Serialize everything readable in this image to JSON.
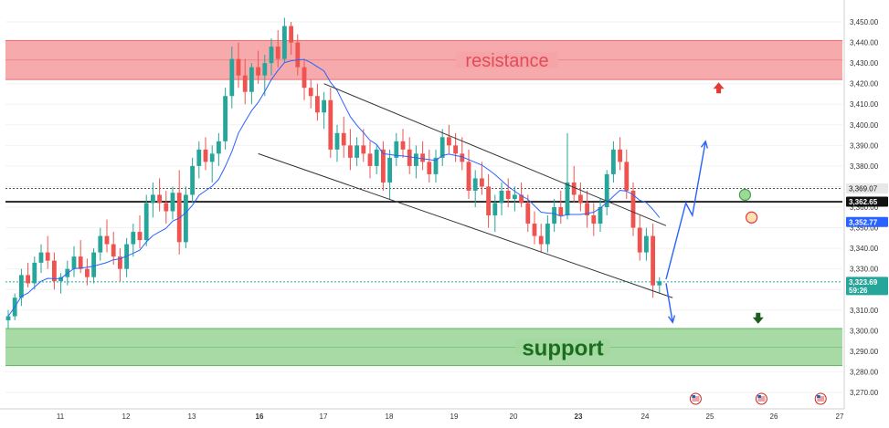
{
  "chart_data": {
    "type": "candlestick",
    "title": "",
    "xlabel": "",
    "ylabel": "",
    "ylim": [
      3262,
      3458
    ],
    "y_ticks": [
      3270,
      3280,
      3290,
      3300,
      3310,
      3320,
      3330,
      3340,
      3350,
      3360,
      3370,
      3380,
      3390,
      3400,
      3410,
      3420,
      3430,
      3440,
      3450
    ],
    "y_tick_labels": [
      "3,270.00",
      "3,280.00",
      "3,290.00",
      "3,300.00",
      "3,310.00",
      "3,320.00",
      "3,330.00",
      "3,340.00",
      "3,350.00",
      "3,360.00",
      "3,370.00",
      "3,380.00",
      "3,390.00",
      "3,400.00",
      "3,410.00",
      "3,420.00",
      "3,430.00",
      "3,440.00",
      "3,450.00"
    ],
    "x_tick_labels": [
      "11",
      "12",
      "13",
      "16",
      "17",
      "18",
      "19",
      "20",
      "23",
      "24",
      "25",
      "26",
      "27"
    ],
    "x_tick_positions": [
      1,
      2,
      3,
      4,
      5,
      6,
      7,
      8,
      9,
      10,
      11,
      12,
      13
    ],
    "x_tick_bold": [
      "16",
      "23"
    ],
    "zones": [
      {
        "name": "resistance",
        "from": 3422,
        "to": 3441,
        "color": "#f5a5a8",
        "edge": "#e06d73",
        "label_color": "#e24b57"
      },
      {
        "name": "support",
        "from": 3283,
        "to": 3301,
        "color": "#a3d8a0",
        "edge": "#5fb35c",
        "label_color": "#1b6e1f"
      }
    ],
    "levels": [
      {
        "value": 3369.07,
        "label": "3,369.07",
        "style": "dotted",
        "color": "#555555",
        "badge_bg": "#e8e8e8",
        "badge_fg": "#111"
      },
      {
        "value": 3362.65,
        "label": "3,362.65",
        "style": "solid",
        "color": "#000000",
        "badge_bg": "#111111",
        "badge_fg": "#fff"
      },
      {
        "value": 3352.77,
        "label": "3,352.77",
        "style": "none",
        "color": "#2962ff",
        "badge_bg": "#2962ff",
        "badge_fg": "#fff"
      },
      {
        "value": 3323.69,
        "label": "3,323.69",
        "sub": "59:26",
        "style": "dotted",
        "color": "#26a69a",
        "badge_bg": "#26a69a",
        "badge_fg": "#fff"
      }
    ],
    "candles_ohlc": [
      [
        3305,
        3310,
        3301,
        3307
      ],
      [
        3307,
        3318,
        3305,
        3316
      ],
      [
        3316,
        3330,
        3312,
        3327
      ],
      [
        3327,
        3333,
        3321,
        3323
      ],
      [
        3323,
        3336,
        3320,
        3333
      ],
      [
        3333,
        3342,
        3328,
        3338
      ],
      [
        3338,
        3346,
        3330,
        3334
      ],
      [
        3334,
        3338,
        3320,
        3324
      ],
      [
        3324,
        3328,
        3318,
        3326
      ],
      [
        3326,
        3334,
        3322,
        3330
      ],
      [
        3330,
        3341,
        3326,
        3336
      ],
      [
        3336,
        3344,
        3328,
        3330
      ],
      [
        3330,
        3335,
        3322,
        3326
      ],
      [
        3326,
        3340,
        3323,
        3338
      ],
      [
        3338,
        3350,
        3334,
        3346
      ],
      [
        3346,
        3354,
        3338,
        3342
      ],
      [
        3342,
        3348,
        3332,
        3336
      ],
      [
        3336,
        3340,
        3324,
        3330
      ],
      [
        3330,
        3345,
        3326,
        3342
      ],
      [
        3342,
        3352,
        3336,
        3348
      ],
      [
        3348,
        3356,
        3340,
        3344
      ],
      [
        3344,
        3366,
        3341,
        3362
      ],
      [
        3362,
        3372,
        3355,
        3366
      ],
      [
        3366,
        3374,
        3358,
        3362
      ],
      [
        3362,
        3368,
        3352,
        3358
      ],
      [
        3358,
        3370,
        3354,
        3367
      ],
      [
        3367,
        3378,
        3337,
        3343
      ],
      [
        3343,
        3370,
        3340,
        3366
      ],
      [
        3366,
        3384,
        3362,
        3380
      ],
      [
        3380,
        3392,
        3374,
        3388
      ],
      [
        3388,
        3394,
        3378,
        3382
      ],
      [
        3382,
        3390,
        3372,
        3386
      ],
      [
        3386,
        3396,
        3380,
        3392
      ],
      [
        3392,
        3418,
        3388,
        3414
      ],
      [
        3414,
        3438,
        3408,
        3432
      ],
      [
        3432,
        3440,
        3418,
        3424
      ],
      [
        3424,
        3432,
        3410,
        3416
      ],
      [
        3416,
        3430,
        3410,
        3428
      ],
      [
        3428,
        3436,
        3420,
        3424
      ],
      [
        3424,
        3434,
        3414,
        3430
      ],
      [
        3430,
        3442,
        3424,
        3438
      ],
      [
        3438,
        3446,
        3428,
        3432
      ],
      [
        3432,
        3452,
        3430,
        3448
      ],
      [
        3448,
        3450,
        3434,
        3440
      ],
      [
        3440,
        3444,
        3424,
        3428
      ],
      [
        3428,
        3432,
        3412,
        3418
      ],
      [
        3418,
        3422,
        3408,
        3414
      ],
      [
        3414,
        3420,
        3402,
        3406
      ],
      [
        3406,
        3416,
        3398,
        3412
      ],
      [
        3412,
        3418,
        3384,
        3388
      ],
      [
        3388,
        3400,
        3382,
        3396
      ],
      [
        3396,
        3404,
        3384,
        3390
      ],
      [
        3390,
        3398,
        3378,
        3384
      ],
      [
        3384,
        3394,
        3380,
        3390
      ],
      [
        3390,
        3398,
        3382,
        3386
      ],
      [
        3386,
        3392,
        3374,
        3380
      ],
      [
        3380,
        3390,
        3376,
        3388
      ],
      [
        3388,
        3392,
        3368,
        3372
      ],
      [
        3372,
        3388,
        3364,
        3384
      ],
      [
        3384,
        3396,
        3380,
        3392
      ],
      [
        3392,
        3398,
        3384,
        3388
      ],
      [
        3388,
        3394,
        3376,
        3380
      ],
      [
        3380,
        3390,
        3374,
        3386
      ],
      [
        3386,
        3392,
        3378,
        3382
      ],
      [
        3382,
        3388,
        3372,
        3376
      ],
      [
        3376,
        3388,
        3372,
        3384
      ],
      [
        3384,
        3398,
        3380,
        3394
      ],
      [
        3394,
        3400,
        3386,
        3390
      ],
      [
        3390,
        3396,
        3382,
        3386
      ],
      [
        3386,
        3394,
        3378,
        3382
      ],
      [
        3382,
        3388,
        3364,
        3368
      ],
      [
        3368,
        3378,
        3360,
        3374
      ],
      [
        3374,
        3382,
        3366,
        3370
      ],
      [
        3370,
        3376,
        3350,
        3356
      ],
      [
        3356,
        3366,
        3348,
        3362
      ],
      [
        3362,
        3372,
        3356,
        3368
      ],
      [
        3368,
        3374,
        3360,
        3364
      ],
      [
        3364,
        3370,
        3358,
        3366
      ],
      [
        3366,
        3372,
        3360,
        3362
      ],
      [
        3362,
        3366,
        3348,
        3352
      ],
      [
        3352,
        3358,
        3342,
        3346
      ],
      [
        3346,
        3352,
        3338,
        3342
      ],
      [
        3342,
        3356,
        3338,
        3352
      ],
      [
        3352,
        3364,
        3348,
        3360
      ],
      [
        3360,
        3368,
        3352,
        3356
      ],
      [
        3356,
        3396,
        3354,
        3372
      ],
      [
        3372,
        3380,
        3362,
        3366
      ],
      [
        3366,
        3372,
        3358,
        3362
      ],
      [
        3362,
        3368,
        3350,
        3356
      ],
      [
        3356,
        3362,
        3346,
        3352
      ],
      [
        3352,
        3364,
        3348,
        3360
      ],
      [
        3360,
        3378,
        3356,
        3376
      ],
      [
        3376,
        3392,
        3372,
        3388
      ],
      [
        3388,
        3394,
        3378,
        3382
      ],
      [
        3382,
        3388,
        3364,
        3368
      ],
      [
        3368,
        3372,
        3346,
        3350
      ],
      [
        3350,
        3356,
        3334,
        3338
      ],
      [
        3338,
        3350,
        3334,
        3346
      ],
      [
        3346,
        3352,
        3316,
        3322
      ],
      [
        3322,
        3326,
        3318,
        3324
      ]
    ],
    "ma_series_name": "",
    "ma_series_color": "#2962ff",
    "channel": {
      "upper": [
        [
          48,
          3420
        ],
        [
          100,
          3351
        ]
      ],
      "lower": [
        [
          38,
          3386
        ],
        [
          101,
          3316
        ]
      ]
    },
    "projection": {
      "color": "#2962ff",
      "bull_path": [
        [
          100,
          3325
        ],
        [
          103,
          3362
        ],
        [
          104,
          3356
        ],
        [
          106,
          3392
        ]
      ],
      "bear_path": [
        [
          100,
          3323
        ],
        [
          101,
          3304
        ]
      ]
    },
    "markers": [
      {
        "type": "arrow-up",
        "color": "#e53935",
        "x": 108,
        "y": 3418
      },
      {
        "type": "arrow-down",
        "color": "#1b5e20",
        "x": 114,
        "y": 3306
      },
      {
        "type": "circle",
        "color": "#9ed99a",
        "stroke": "#43a047",
        "x": 112,
        "y": 3366
      },
      {
        "type": "circle",
        "color": "#fde0b3",
        "stroke": "#e53935",
        "x": 113,
        "y": 3355
      }
    ],
    "event_flags": [
      {
        "x": 104.5,
        "label": "US"
      },
      {
        "x": 114.5,
        "label": "US"
      },
      {
        "x": 123.5,
        "label": "US"
      }
    ]
  }
}
